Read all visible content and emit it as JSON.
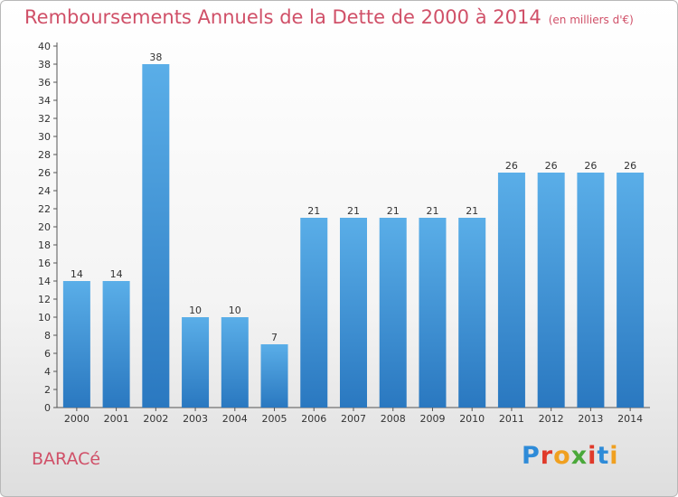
{
  "header": {
    "title": "Remboursements Annuels de la Dette de 2000 à 2014",
    "unit": "(en milliers d'€)"
  },
  "footer": {
    "commune": "BARACé",
    "logo": "Proxiti",
    "logo_colors": [
      "#2e8bd8",
      "#e03a2a",
      "#f0a020",
      "#4aa83a",
      "#e03a2a",
      "#2e8bd8",
      "#f0a020"
    ]
  },
  "chart_data": {
    "type": "bar",
    "title": "Remboursements Annuels de la Dette de 2000 à 2014",
    "subtitle": "(en milliers d'€)",
    "xlabel": "",
    "ylabel": "",
    "categories": [
      "2000",
      "2001",
      "2002",
      "2003",
      "2004",
      "2005",
      "2006",
      "2007",
      "2008",
      "2009",
      "2010",
      "2011",
      "2012",
      "2013",
      "2014"
    ],
    "values": [
      14,
      14,
      38,
      10,
      10,
      7,
      21,
      21,
      21,
      21,
      21,
      26,
      26,
      26,
      26
    ],
    "ylim": [
      0,
      40
    ],
    "ytick_step": 2,
    "grid": false,
    "bar_color": "#4b9fe0",
    "bar_color_dark": "#2a78c0"
  }
}
